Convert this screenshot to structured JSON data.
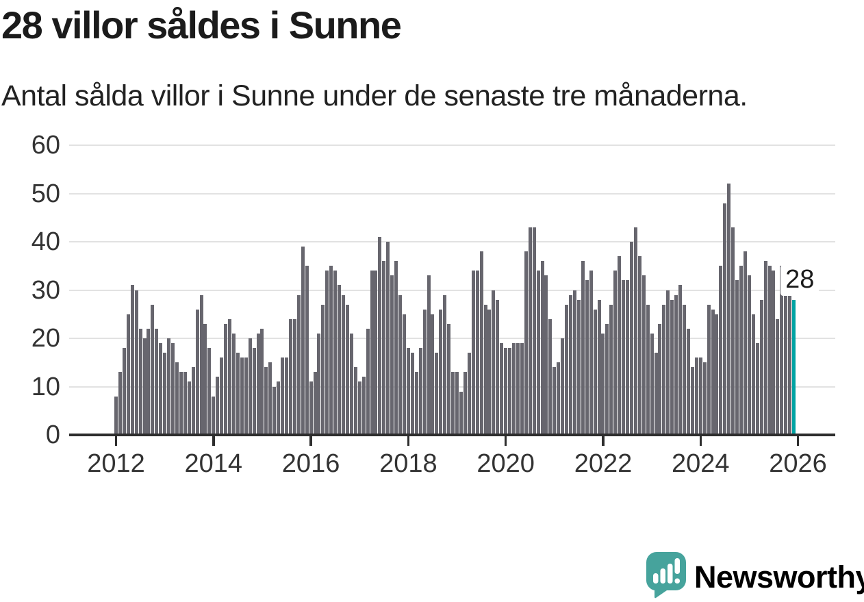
{
  "header": {
    "title": "28 villor såldes i Sunne",
    "subtitle": "Antal sålda villor i Sunne under de senaste tre månaderna."
  },
  "chart_data": {
    "type": "bar",
    "title": "28 villor såldes i Sunne",
    "subtitle": "Antal sålda villor i Sunne under de senaste tre månaderna.",
    "ylabel": "Antal sålda villor",
    "xlabel": "",
    "ylim": [
      0,
      60
    ],
    "yticks": [
      0,
      10,
      20,
      30,
      40,
      50,
      60
    ],
    "xticks": [
      2012,
      2014,
      2016,
      2018,
      2020,
      2022,
      2024,
      2026
    ],
    "grid": "horizontal",
    "legend": "none",
    "bar_color": "#67666E",
    "highlight_color": "#00A3A3",
    "axis_color": "#2E2E2E",
    "gridline_color": "#E2E2E2",
    "start_year": 2012,
    "months_per_year": 12,
    "series": [
      {
        "name": "Antal sålda villor, rullande tre månader",
        "values": [
          8,
          13,
          18,
          25,
          31,
          30,
          22,
          20,
          22,
          27,
          22,
          19,
          17,
          20,
          19,
          15,
          13,
          13,
          11,
          14,
          26,
          29,
          23,
          18,
          8,
          12,
          16,
          23,
          24,
          21,
          17,
          16,
          16,
          20,
          18,
          21,
          22,
          14,
          15,
          10,
          11,
          16,
          16,
          24,
          24,
          29,
          39,
          35,
          11,
          13,
          21,
          27,
          34,
          35,
          34,
          31,
          29,
          27,
          21,
          14,
          11,
          12,
          22,
          34,
          34,
          41,
          36,
          40,
          33,
          36,
          29,
          25,
          18,
          17,
          13,
          18,
          26,
          33,
          25,
          17,
          26,
          29,
          23,
          13,
          13,
          9,
          13,
          17,
          34,
          34,
          38,
          27,
          26,
          30,
          28,
          19,
          18,
          18,
          19,
          19,
          19,
          38,
          43,
          43,
          34,
          36,
          33,
          24,
          14,
          15,
          20,
          27,
          29,
          30,
          28,
          36,
          32,
          34,
          26,
          28,
          21,
          23,
          27,
          34,
          37,
          32,
          32,
          40,
          43,
          37,
          33,
          27,
          21,
          17,
          23,
          27,
          30,
          28,
          29,
          31,
          27,
          22,
          14,
          16,
          16,
          15,
          27,
          26,
          25,
          35,
          48,
          52,
          43,
          32,
          35,
          38,
          33,
          25,
          19,
          28,
          36,
          35,
          34,
          24,
          35,
          30,
          30,
          28
        ]
      }
    ],
    "highlight": {
      "index": 167,
      "value": 28,
      "label": "28"
    }
  },
  "branding": {
    "logo_text": "Newsworthy",
    "logo_color": "#46A39C"
  }
}
